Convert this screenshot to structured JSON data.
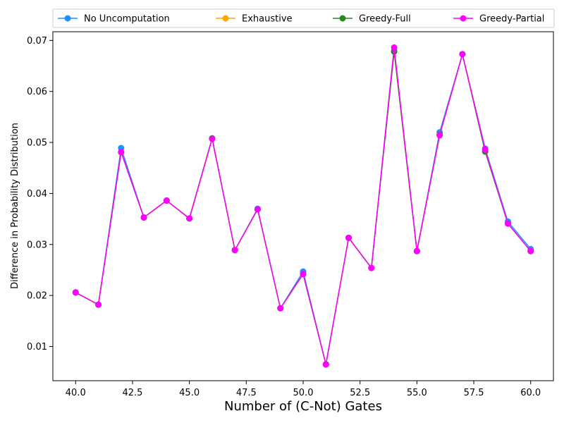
{
  "chart_data": {
    "type": "line",
    "title": "",
    "xlabel": "Number of (C-Not) Gates",
    "ylabel": "Difference in Probability Distribution",
    "xlim": [
      39.0,
      61.0
    ],
    "ylim": [
      0.0033,
      0.0717
    ],
    "xticks": [
      40.0,
      42.5,
      45.0,
      47.5,
      50.0,
      52.5,
      55.0,
      57.5,
      60.0
    ],
    "xtick_labels": [
      "40.0",
      "42.5",
      "45.0",
      "47.5",
      "50.0",
      "52.5",
      "55.0",
      "57.5",
      "60.0"
    ],
    "yticks": [
      0.01,
      0.02,
      0.03,
      0.04,
      0.05,
      0.06,
      0.07
    ],
    "ytick_labels": [
      "0.01",
      "0.02",
      "0.03",
      "0.04",
      "0.05",
      "0.06",
      "0.07"
    ],
    "legend_position": "top",
    "grid": false,
    "x": [
      40,
      41,
      42,
      43,
      44,
      45,
      46,
      47,
      48,
      49,
      50,
      51,
      52,
      53,
      54,
      55,
      56,
      57,
      58,
      59,
      60
    ],
    "series": [
      {
        "name": "No Uncomputation",
        "color": "#1e90ff",
        "values": [
          0.0206,
          0.0182,
          0.0489,
          0.0353,
          0.0386,
          0.0351,
          0.0508,
          0.0289,
          0.037,
          0.0175,
          0.0247,
          0.0065,
          0.0313,
          0.0254,
          0.068,
          0.0287,
          0.052,
          0.0673,
          0.0488,
          0.0345,
          0.0291
        ]
      },
      {
        "name": "Exhaustive",
        "color": "#ffa500",
        "values": [
          0.0206,
          0.0182,
          0.0481,
          0.0353,
          0.0386,
          0.0351,
          0.0508,
          0.0289,
          0.0369,
          0.0175,
          0.0242,
          0.0065,
          0.0313,
          0.0254,
          0.0678,
          0.0287,
          0.0515,
          0.0673,
          0.0483,
          0.0341,
          0.0287
        ]
      },
      {
        "name": "Greedy-Full",
        "color": "#228b22",
        "values": [
          0.0206,
          0.0182,
          0.0481,
          0.0353,
          0.0386,
          0.0351,
          0.0508,
          0.0289,
          0.0369,
          0.0175,
          0.0242,
          0.0065,
          0.0313,
          0.0254,
          0.0678,
          0.0287,
          0.0515,
          0.0673,
          0.0482,
          0.0341,
          0.0287
        ]
      },
      {
        "name": "Greedy-Partial",
        "color": "#ff00ff",
        "values": [
          0.0206,
          0.0182,
          0.0481,
          0.0353,
          0.0386,
          0.0351,
          0.0507,
          0.0289,
          0.0369,
          0.0175,
          0.0242,
          0.0065,
          0.0313,
          0.0254,
          0.0686,
          0.0287,
          0.0514,
          0.0673,
          0.0486,
          0.0341,
          0.0287
        ]
      }
    ]
  }
}
